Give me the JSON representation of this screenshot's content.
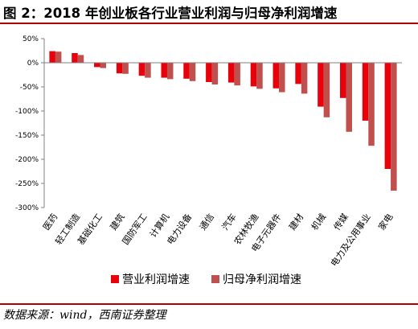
{
  "title": "图 2：2018 年创业板各行业营业利润与归母净利润增速",
  "source": "数据来源：wind，西南证券整理",
  "colors": {
    "series1": "#e8000b",
    "series2": "#c0504d",
    "rule": "#b30000"
  },
  "chart_data": {
    "type": "bar",
    "categories": [
      "医药",
      "轻工制造",
      "基础化工",
      "建筑",
      "国防军工",
      "计算机",
      "电力设备",
      "通信",
      "汽车",
      "农林牧渔",
      "电子元器件",
      "建材",
      "机械",
      "传媒",
      "电力及公用事业",
      "家电"
    ],
    "series": [
      {
        "name": "营业利润增速",
        "values": [
          24,
          20,
          -9,
          -22,
          -27,
          -31,
          -33,
          -40,
          -41,
          -49,
          -53,
          -44,
          -91,
          -73,
          -120,
          -220
        ]
      },
      {
        "name": "归母净利润增速",
        "values": [
          23,
          16,
          -11,
          -23,
          -31,
          -34,
          -38,
          -45,
          -47,
          -54,
          -61,
          -64,
          -113,
          -143,
          -172,
          -265
        ]
      }
    ],
    "ylim": [
      -300,
      50
    ],
    "yticks": [
      50,
      0,
      -50,
      -100,
      -150,
      -200,
      -250,
      -300
    ],
    "ytick_labels": [
      "50%",
      "0%",
      "-50%",
      "-100%",
      "-150%",
      "-200%",
      "-250%",
      "-300%"
    ],
    "xlabel": "",
    "ylabel": "",
    "grid": false,
    "legend_position": "bottom"
  }
}
